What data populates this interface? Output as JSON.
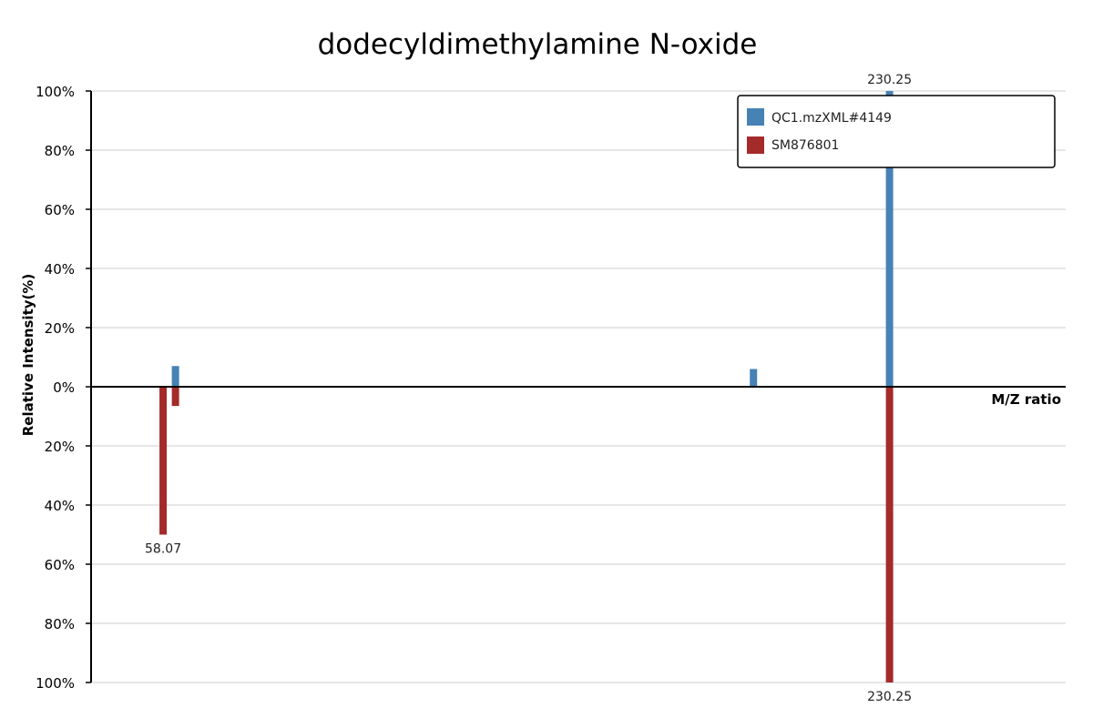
{
  "chart_data": {
    "type": "bar",
    "title": "dodecyldimethylamine N-oxide",
    "xlabel": "M/Z ratio",
    "ylabel": "Relative Intensity(%)",
    "y_ticks_top": [
      "100%",
      "80%",
      "60%",
      "40%",
      "20%",
      "0%"
    ],
    "y_ticks_bottom": [
      "20%",
      "40%",
      "60%",
      "80%",
      "100%"
    ],
    "ylim": [
      -100,
      100
    ],
    "xlim": [
      41,
      272
    ],
    "grid": true,
    "legend_position": "top-right",
    "series": [
      {
        "name": "QC1.mzXML#4149",
        "color": "#4682b4",
        "direction": "up",
        "peaks": [
          {
            "mz": 61,
            "intensity": 7
          },
          {
            "mz": 198,
            "intensity": 6
          },
          {
            "mz": 230.25,
            "intensity": 100,
            "label": "230.25"
          }
        ]
      },
      {
        "name": "SM876801",
        "color": "#a52a2a",
        "direction": "down",
        "peaks": [
          {
            "mz": 58.07,
            "intensity": 50,
            "label": "58.07"
          },
          {
            "mz": 61,
            "intensity": 6.5
          },
          {
            "mz": 230.25,
            "intensity": 100,
            "label": "230.25"
          }
        ]
      }
    ]
  }
}
